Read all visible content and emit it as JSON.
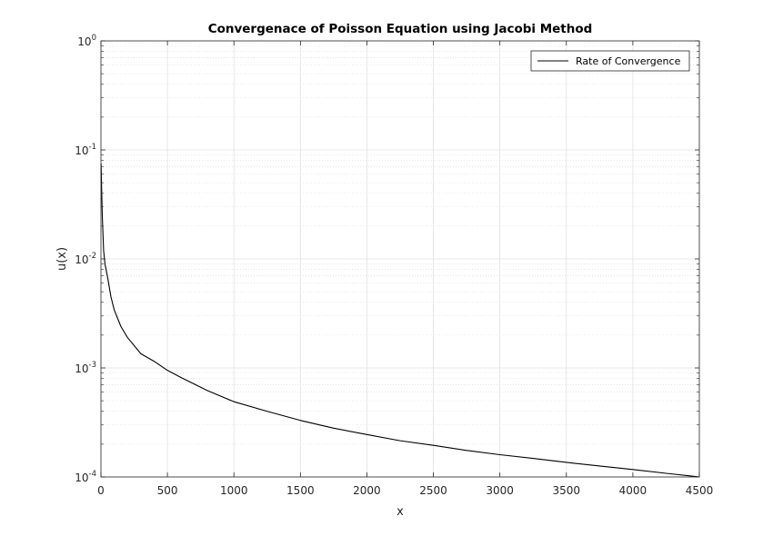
{
  "chart_data": {
    "type": "line",
    "title": "Convergenace of Poisson Equation using Jacobi Method",
    "xlabel": "x",
    "ylabel": "u(x)",
    "xlim": [
      0,
      4500
    ],
    "ylim": [
      0.0001,
      1
    ],
    "yscale": "log",
    "grid": true,
    "minor_grid": true,
    "legend": {
      "position": "top-right",
      "entries": [
        "Rate of Convergence"
      ]
    },
    "x_ticks": [
      "0",
      "500",
      "1000",
      "1500",
      "2000",
      "2500",
      "3000",
      "3500",
      "4000",
      "4500"
    ],
    "y_ticks": [
      {
        "base": "10",
        "exp": "-4",
        "value": 0.0001
      },
      {
        "base": "10",
        "exp": "-3",
        "value": 0.001
      },
      {
        "base": "10",
        "exp": "-2",
        "value": 0.01
      },
      {
        "base": "10",
        "exp": "-1",
        "value": 0.1
      },
      {
        "base": "10",
        "exp": "0",
        "value": 1
      }
    ],
    "series": [
      {
        "name": "Rate of Convergence",
        "color": "#000000",
        "x": [
          1,
          5,
          10,
          20,
          30,
          50,
          75,
          100,
          150,
          200,
          300,
          400,
          500,
          600,
          800,
          1000,
          1250,
          1500,
          1750,
          2000,
          2250,
          2500,
          2750,
          3000,
          3250,
          3500,
          3750,
          4000,
          4250,
          4500
        ],
        "y": [
          0.075,
          0.045,
          0.025,
          0.012,
          0.009,
          0.0068,
          0.0045,
          0.0034,
          0.0024,
          0.0019,
          0.00135,
          0.00115,
          0.00095,
          0.00082,
          0.00062,
          0.00049,
          0.0004,
          0.00033,
          0.00028,
          0.000245,
          0.000215,
          0.000195,
          0.000175,
          0.00016,
          0.000148,
          0.000136,
          0.000126,
          0.000117,
          0.000108,
          0.0001
        ]
      }
    ]
  }
}
